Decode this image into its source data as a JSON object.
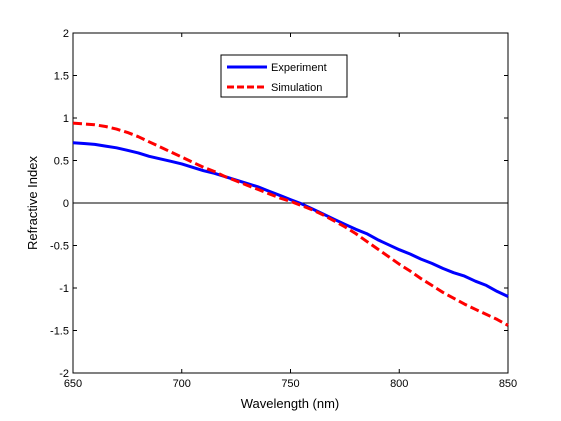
{
  "chart_data": {
    "type": "line",
    "title": "",
    "xlabel": "Wavelength (nm)",
    "ylabel": "Refractive Index",
    "xlim": [
      650,
      850
    ],
    "ylim": [
      -2,
      2
    ],
    "xticks": [
      650,
      700,
      750,
      800,
      850
    ],
    "yticks": [
      -2,
      -1.5,
      -1,
      -0.5,
      0,
      0.5,
      1,
      1.5,
      2
    ],
    "xtick_labels": [
      "650",
      "700",
      "750",
      "800",
      "850"
    ],
    "ytick_labels": [
      "-2",
      "-1.5",
      "-1",
      "-0.5",
      "0",
      "0.5",
      "1",
      "1.5",
      "2"
    ],
    "grid": false,
    "zero_line": true,
    "legend_position": "top-center",
    "series": [
      {
        "name": "Experiment",
        "color": "#0000ff",
        "style": "solid",
        "x": [
          650,
          655,
          660,
          665,
          670,
          675,
          680,
          685,
          690,
          695,
          700,
          705,
          710,
          715,
          720,
          725,
          730,
          735,
          740,
          745,
          750,
          755,
          760,
          765,
          770,
          775,
          780,
          785,
          790,
          795,
          800,
          805,
          810,
          815,
          820,
          825,
          830,
          835,
          840,
          845,
          850
        ],
        "y": [
          0.71,
          0.7,
          0.69,
          0.67,
          0.65,
          0.62,
          0.59,
          0.55,
          0.52,
          0.49,
          0.46,
          0.42,
          0.38,
          0.35,
          0.31,
          0.27,
          0.23,
          0.19,
          0.14,
          0.09,
          0.04,
          -0.01,
          -0.07,
          -0.13,
          -0.19,
          -0.25,
          -0.31,
          -0.36,
          -0.43,
          -0.49,
          -0.55,
          -0.6,
          -0.66,
          -0.71,
          -0.77,
          -0.82,
          -0.86,
          -0.92,
          -0.97,
          -1.04,
          -1.1
        ]
      },
      {
        "name": "Simulation",
        "color": "#ff0000",
        "style": "dashed",
        "x": [
          650,
          655,
          660,
          665,
          670,
          675,
          680,
          685,
          690,
          695,
          700,
          705,
          710,
          715,
          720,
          725,
          730,
          735,
          740,
          745,
          750,
          755,
          760,
          765,
          770,
          775,
          780,
          785,
          790,
          795,
          800,
          805,
          810,
          815,
          820,
          825,
          830,
          835,
          840,
          845,
          850
        ],
        "y": [
          0.94,
          0.93,
          0.92,
          0.9,
          0.87,
          0.83,
          0.78,
          0.72,
          0.66,
          0.6,
          0.54,
          0.48,
          0.42,
          0.37,
          0.31,
          0.26,
          0.21,
          0.16,
          0.11,
          0.06,
          0.02,
          -0.03,
          -0.08,
          -0.14,
          -0.21,
          -0.28,
          -0.36,
          -0.45,
          -0.54,
          -0.63,
          -0.72,
          -0.8,
          -0.89,
          -0.97,
          -1.05,
          -1.12,
          -1.19,
          -1.25,
          -1.31,
          -1.37,
          -1.44
        ]
      }
    ]
  }
}
